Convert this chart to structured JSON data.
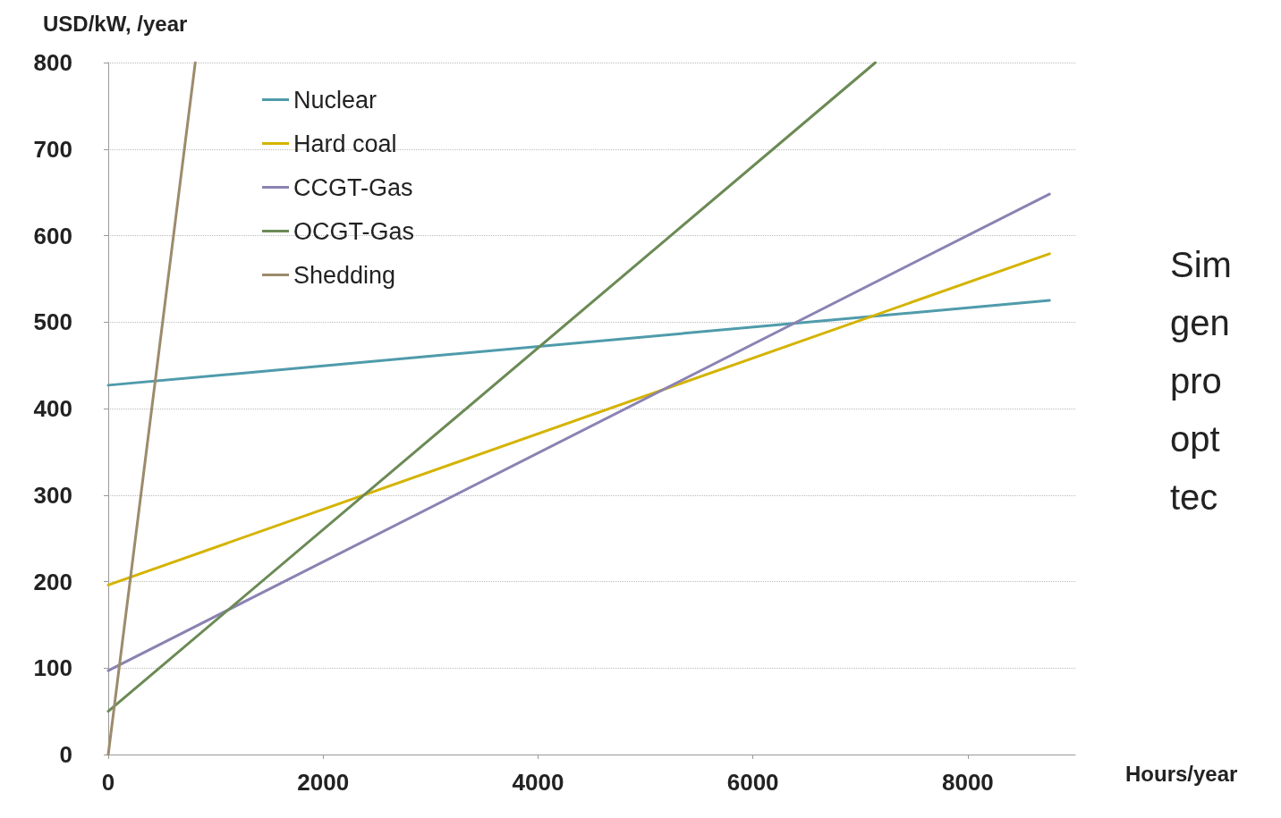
{
  "chart_data": {
    "type": "line",
    "ylabel": "USD/kW, /year",
    "xlabel": "Hours/year",
    "annotations": [
      "Sim\ngen\npro\nopt\ntec"
    ],
    "xlim": [
      0,
      9000
    ],
    "xticks": [
      0,
      2000,
      4000,
      6000,
      8000
    ],
    "ylim": [
      0,
      800
    ],
    "yticks": [
      0,
      100,
      200,
      300,
      400,
      500,
      600,
      700,
      800
    ],
    "grid": "y",
    "legend": "top left",
    "marker": "none",
    "line_style": "solid",
    "series": [
      {
        "name": "Nuclear",
        "color": "#4f9bab",
        "x": [
          0,
          8760
        ],
        "values": [
          427,
          525
        ]
      },
      {
        "name": "Hard coal",
        "color": "#d4b300",
        "x": [
          0,
          8760
        ],
        "values": [
          196,
          579
        ]
      },
      {
        "name": "CCGT-Gas",
        "color": "#8b82b3",
        "x": [
          0,
          8760
        ],
        "values": [
          97,
          648
        ]
      },
      {
        "name": "OCGT-Gas",
        "color": "#6b8a55",
        "x": [
          0,
          7140
        ],
        "values": [
          50,
          800
        ]
      },
      {
        "name": "Shedding",
        "color": "#9c8b6c",
        "x": [
          0,
          810
        ],
        "values": [
          0,
          800
        ]
      }
    ]
  }
}
